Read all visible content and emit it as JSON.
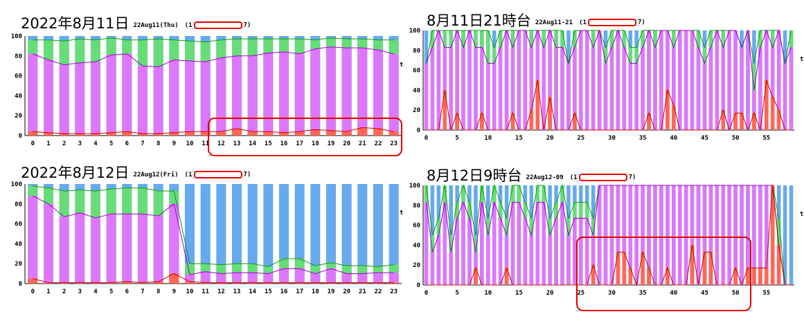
{
  "colors": {
    "purple": "#dd77ff",
    "green": "#66dd77",
    "blue": "#66aaee",
    "red": "#ff6655",
    "line_purple": "#9900cc",
    "line_green": "#119911",
    "line_red": "#cc0000",
    "highlight": "#e00000",
    "grid": "#bbbbbb"
  },
  "panels": [
    {
      "title_big": "2022年8月11日",
      "title_small": "22Aug11(Thu)",
      "paren_open": "(1",
      "paren_close": "7)",
      "right_marker": "t",
      "chart_data": {
        "type": "bar",
        "title": "2022年8月11日",
        "ylim": [
          0,
          100
        ],
        "yticks": [
          "100",
          "80",
          "60",
          "40",
          "20",
          "0"
        ],
        "categories": [
          "0",
          "1",
          "2",
          "3",
          "4",
          "5",
          "6",
          "7",
          "8",
          "9",
          "10",
          "11",
          "12",
          "13",
          "14",
          "15",
          "16",
          "17",
          "18",
          "19",
          "20",
          "21",
          "22",
          "23"
        ],
        "xtick_labels": [
          "0",
          "1",
          "2",
          "3",
          "4",
          "5",
          "6",
          "7",
          "8",
          "9",
          "10",
          "11",
          "12",
          "13",
          "14",
          "15",
          "16",
          "17",
          "18",
          "19",
          "20",
          "21",
          "22",
          "23"
        ],
        "series": [
          {
            "name": "red",
            "values": [
              4,
              3,
              2,
              2,
              2,
              3,
              4,
              2,
              2,
              3,
              4,
              4,
              4,
              7,
              4,
              4,
              3,
              4,
              6,
              5,
              4,
              8,
              7,
              4
            ],
            "colorKey": "red"
          },
          {
            "name": "purple",
            "values": [
              82,
              76,
              71,
              73,
              74,
              81,
              82,
              70,
              69,
              76,
              75,
              74,
              78,
              80,
              80,
              83,
              84,
              82,
              87,
              89,
              88,
              88,
              86,
              82
            ],
            "colorKey": "purple"
          },
          {
            "name": "green",
            "values": [
              96,
              96,
              95,
              97,
              96,
              98,
              96,
              96,
              97,
              96,
              95,
              94,
              96,
              97,
              97,
              97,
              97,
              97,
              96,
              98,
              97,
              97,
              96,
              96
            ],
            "colorKey": "green"
          }
        ]
      }
    },
    {
      "title_big": "8月11日21時台",
      "title_small": "22Aug11-21",
      "paren_open": "(1",
      "paren_close": "7)",
      "right_marker": "t",
      "chart_data": {
        "type": "bar",
        "title": "8月11日21時台",
        "ylim": [
          0,
          100
        ],
        "yticks": [
          "100",
          "80",
          "60",
          "40",
          "20",
          "0"
        ],
        "categories": [
          "0",
          "1",
          "2",
          "3",
          "4",
          "5",
          "6",
          "7",
          "8",
          "9",
          "10",
          "11",
          "12",
          "13",
          "14",
          "15",
          "16",
          "17",
          "18",
          "19",
          "20",
          "21",
          "22",
          "23",
          "24",
          "25",
          "26",
          "27",
          "28",
          "29",
          "30",
          "31",
          "32",
          "33",
          "34",
          "35",
          "36",
          "37",
          "38",
          "39",
          "40",
          "41",
          "42",
          "43",
          "44",
          "45",
          "46",
          "47",
          "48",
          "49",
          "50",
          "51",
          "52",
          "53",
          "54",
          "55",
          "56",
          "57",
          "58",
          "59"
        ],
        "xtick_labels": [
          "0",
          "",
          "",
          "",
          "",
          "5",
          "",
          "",
          "",
          "",
          "10",
          "",
          "",
          "",
          "",
          "15",
          "",
          "",
          "",
          "",
          "20",
          "",
          "",
          "",
          "",
          "25",
          "",
          "",
          "",
          "",
          "30",
          "",
          "",
          "",
          "",
          "35",
          "",
          "",
          "",
          "",
          "40",
          "",
          "",
          "",
          "",
          "45",
          "",
          "",
          "",
          "",
          "50",
          "",
          "",
          "",
          "",
          "55",
          "",
          "",
          "",
          ""
        ],
        "series": [
          {
            "name": "red",
            "values": [
              0,
              0,
              0,
              40,
              0,
              17,
              0,
              0,
              0,
              17,
              0,
              0,
              0,
              0,
              17,
              0,
              0,
              20,
              50,
              0,
              33,
              0,
              0,
              0,
              17,
              0,
              0,
              0,
              0,
              0,
              0,
              0,
              0,
              0,
              0,
              0,
              17,
              0,
              0,
              40,
              25,
              0,
              0,
              0,
              0,
              0,
              0,
              0,
              20,
              0,
              17,
              17,
              0,
              17,
              0,
              50,
              33,
              20,
              0,
              0
            ],
            "colorKey": "red"
          },
          {
            "name": "purple",
            "values": [
              67,
              83,
              100,
              83,
              83,
              100,
              83,
              100,
              83,
              83,
              67,
              67,
              83,
              100,
              83,
              100,
              100,
              83,
              100,
              83,
              100,
              83,
              83,
              67,
              83,
              100,
              100,
              83,
              100,
              67,
              83,
              100,
              83,
              67,
              67,
              83,
              100,
              83,
              100,
              100,
              83,
              100,
              100,
              100,
              83,
              67,
              83,
              100,
              83,
              100,
              100,
              83,
              100,
              40,
              83,
              100,
              83,
              100,
              67,
              83
            ],
            "colorKey": "purple"
          },
          {
            "name": "green",
            "values": [
              67,
              100,
              100,
              100,
              100,
              100,
              100,
              100,
              100,
              100,
              100,
              83,
              100,
              100,
              100,
              100,
              100,
              100,
              100,
              100,
              100,
              100,
              100,
              67,
              100,
              100,
              100,
              100,
              100,
              83,
              100,
              100,
              100,
              83,
              83,
              100,
              100,
              100,
              100,
              100,
              100,
              100,
              100,
              100,
              100,
              83,
              100,
              100,
              100,
              100,
              100,
              83,
              100,
              67,
              100,
              100,
              100,
              100,
              67,
              100
            ],
            "colorKey": "green"
          }
        ]
      }
    },
    {
      "title_big": "2022年8月12日",
      "title_small": "22Aug12(Fri)",
      "paren_open": "(1",
      "paren_close": "7)",
      "right_marker": "t",
      "chart_data": {
        "type": "bar",
        "title": "2022年8月12日",
        "ylim": [
          0,
          100
        ],
        "yticks": [
          "100",
          "80",
          "60",
          "40",
          "20",
          "0"
        ],
        "categories": [
          "0",
          "1",
          "2",
          "3",
          "4",
          "5",
          "6",
          "7",
          "8",
          "9",
          "10",
          "11",
          "12",
          "13",
          "14",
          "15",
          "16",
          "17",
          "18",
          "19",
          "20",
          "21",
          "22",
          "23"
        ],
        "xtick_labels": [
          "0",
          "1",
          "2",
          "3",
          "4",
          "5",
          "6",
          "7",
          "8",
          "9",
          "10",
          "11",
          "12",
          "13",
          "14",
          "15",
          "16",
          "17",
          "18",
          "19",
          "20",
          "21",
          "22",
          "23"
        ],
        "series": [
          {
            "name": "red",
            "values": [
              5,
              1,
              1,
              1,
              1,
              1,
              2,
              1,
              2,
              10,
              2,
              1,
              1,
              1,
              1,
              1,
              1,
              1,
              1,
              1,
              1,
              1,
              1,
              1
            ],
            "colorKey": "red"
          },
          {
            "name": "purple",
            "values": [
              88,
              80,
              67,
              71,
              66,
              70,
              70,
              70,
              68,
              80,
              9,
              12,
              10,
              11,
              11,
              10,
              15,
              15,
              10,
              15,
              10,
              10,
              11,
              11
            ],
            "colorKey": "purple"
          },
          {
            "name": "green",
            "values": [
              98,
              96,
              93,
              94,
              93,
              95,
              96,
              96,
              93,
              93,
              20,
              20,
              19,
              20,
              20,
              17,
              25,
              25,
              18,
              21,
              18,
              18,
              17,
              19
            ],
            "colorKey": "green"
          }
        ]
      }
    },
    {
      "title_big": "8月12日9時台",
      "title_small": "22Aug12-09",
      "paren_open": "(1",
      "paren_close": "7)",
      "right_marker": "t",
      "chart_data": {
        "type": "bar",
        "title": "8月12日9時台",
        "ylim": [
          0,
          100
        ],
        "yticks": [
          "100",
          "80",
          "60",
          "40",
          "20",
          "0"
        ],
        "categories": [
          "0",
          "1",
          "2",
          "3",
          "4",
          "5",
          "6",
          "7",
          "8",
          "9",
          "10",
          "11",
          "12",
          "13",
          "14",
          "15",
          "16",
          "17",
          "18",
          "19",
          "20",
          "21",
          "22",
          "23",
          "24",
          "25",
          "26",
          "27",
          "28",
          "29",
          "30",
          "31",
          "32",
          "33",
          "34",
          "35",
          "36",
          "37",
          "38",
          "39",
          "40",
          "41",
          "42",
          "43",
          "44",
          "45",
          "46",
          "47",
          "48",
          "49",
          "50",
          "51",
          "52",
          "53",
          "54",
          "55",
          "56",
          "57",
          "58",
          "59"
        ],
        "xtick_labels": [
          "0",
          "",
          "",
          "",
          "",
          "5",
          "",
          "",
          "",
          "",
          "10",
          "",
          "",
          "",
          "",
          "15",
          "",
          "",
          "",
          "",
          "20",
          "",
          "",
          "",
          "",
          "25",
          "",
          "",
          "",
          "",
          "30",
          "",
          "",
          "",
          "",
          "35",
          "",
          "",
          "",
          "",
          "40",
          "",
          "",
          "",
          "",
          "45",
          "",
          "",
          "",
          "",
          "50",
          "",
          "",
          "",
          "",
          "55",
          "",
          "",
          "",
          ""
        ],
        "series": [
          {
            "name": "red",
            "values": [
              0,
              0,
              0,
              0,
              0,
              0,
              0,
              0,
              17,
              0,
              0,
              0,
              0,
              17,
              0,
              0,
              0,
              0,
              0,
              0,
              0,
              0,
              0,
              0,
              0,
              0,
              0,
              20,
              0,
              0,
              0,
              33,
              33,
              17,
              0,
              33,
              17,
              0,
              0,
              17,
              0,
              0,
              0,
              40,
              0,
              33,
              33,
              0,
              0,
              0,
              17,
              0,
              17,
              17,
              17,
              17,
              100,
              40,
              0,
              0
            ],
            "colorKey": "red"
          },
          {
            "name": "purple",
            "values": [
              83,
              33,
              50,
              83,
              33,
              67,
              83,
              67,
              33,
              83,
              50,
              83,
              67,
              50,
              83,
              83,
              67,
              50,
              83,
              83,
              50,
              67,
              83,
              50,
              67,
              67,
              67,
              50,
              100,
              100,
              100,
              100,
              100,
              100,
              100,
              100,
              100,
              100,
              100,
              100,
              100,
              100,
              100,
              100,
              100,
              100,
              100,
              100,
              100,
              100,
              100,
              100,
              100,
              100,
              100,
              100,
              100,
              40,
              0,
              0
            ],
            "colorKey": "purple"
          },
          {
            "name": "green",
            "values": [
              100,
              50,
              67,
              100,
              50,
              83,
              100,
              83,
              50,
              100,
              67,
              100,
              83,
              67,
              100,
              100,
              83,
              67,
              100,
              100,
              67,
              83,
              100,
              67,
              83,
              83,
              83,
              67,
              100,
              100,
              100,
              100,
              100,
              100,
              100,
              100,
              100,
              100,
              100,
              100,
              100,
              100,
              100,
              100,
              100,
              100,
              100,
              100,
              100,
              100,
              100,
              100,
              100,
              100,
              100,
              100,
              100,
              67,
              0,
              0
            ],
            "colorKey": "green"
          }
        ]
      }
    }
  ]
}
